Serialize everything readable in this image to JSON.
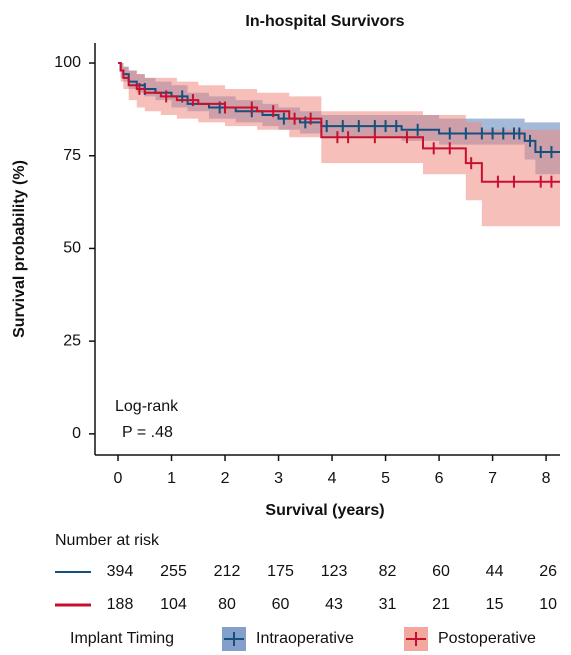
{
  "chart_data": {
    "type": "step",
    "title": "In-hospital Survivors",
    "x_label": "Survival (years)",
    "y_label": "Survival probability (%)",
    "xlim": [
      -0.43,
      8.26
    ],
    "xticks": [
      0,
      1,
      2,
      3,
      4,
      5,
      6,
      7,
      8
    ],
    "ylim": [
      -5.7,
      105.4
    ],
    "yticks": [
      0,
      25,
      50,
      75,
      100
    ],
    "annotation": [
      "Log-rank",
      "P = .48"
    ],
    "series": [
      {
        "name": "Intraoperative",
        "color": "#15507f",
        "band_color": "#5b80b8",
        "x": [
          0,
          0.05,
          0.1,
          0.2,
          0.35,
          0.5,
          0.7,
          1.0,
          1.3,
          1.7,
          2.2,
          2.7,
          3.0,
          3.4,
          3.8,
          5.3,
          6.0,
          7.6,
          7.8,
          8.26
        ],
        "values": [
          100,
          98,
          97,
          95,
          94,
          93,
          92,
          91,
          89,
          88,
          87,
          86,
          85,
          84,
          83,
          82,
          81,
          79,
          76,
          76
        ],
        "upper": [
          100,
          100,
          99,
          98,
          97,
          96,
          95,
          94,
          92,
          91,
          90,
          89,
          88,
          87,
          86,
          86,
          85,
          84,
          84,
          84
        ],
        "lower": [
          100,
          96,
          95,
          93,
          92,
          91,
          90,
          88,
          87,
          85,
          84,
          83,
          82,
          81,
          80,
          79,
          78,
          74,
          70,
          70
        ],
        "censored": [
          0.5,
          1.2,
          1.9,
          2.5,
          3.1,
          3.5,
          3.9,
          4.2,
          4.5,
          4.8,
          5.0,
          5.2,
          5.6,
          6.2,
          6.5,
          6.8,
          7.0,
          7.2,
          7.4,
          7.5,
          7.7,
          7.9,
          8.1
        ],
        "at_risk": [
          394,
          255,
          212,
          175,
          123,
          82,
          60,
          44,
          26
        ]
      },
      {
        "name": "Postoperative",
        "color": "#c8102e",
        "band_color": "#ee8a82",
        "x": [
          0,
          0.05,
          0.1,
          0.2,
          0.35,
          0.5,
          0.8,
          1.1,
          1.5,
          2.0,
          2.6,
          3.2,
          3.8,
          5.7,
          6.5,
          6.8,
          8.26
        ],
        "values": [
          100,
          98,
          96,
          94,
          93,
          92,
          91,
          90,
          89,
          88,
          87,
          85,
          80,
          77,
          73,
          68,
          68
        ],
        "upper": [
          100,
          100,
          99,
          98,
          97,
          96,
          96,
          95,
          94,
          93,
          92,
          91,
          87,
          86,
          84,
          82,
          82
        ],
        "lower": [
          100,
          95,
          93,
          90,
          88,
          87,
          86,
          85,
          84,
          83,
          82,
          80,
          73,
          70,
          63,
          56,
          56
        ],
        "censored": [
          0.4,
          0.9,
          1.4,
          2.0,
          2.5,
          2.9,
          3.3,
          3.6,
          4.1,
          4.3,
          4.8,
          5.4,
          5.9,
          6.2,
          6.6,
          7.1,
          7.4,
          7.9,
          8.1
        ],
        "at_risk": [
          188,
          104,
          80,
          60,
          43,
          31,
          21,
          15,
          10
        ]
      }
    ],
    "risk_table_title": "Number at risk",
    "legend_title": "Implant Timing"
  }
}
